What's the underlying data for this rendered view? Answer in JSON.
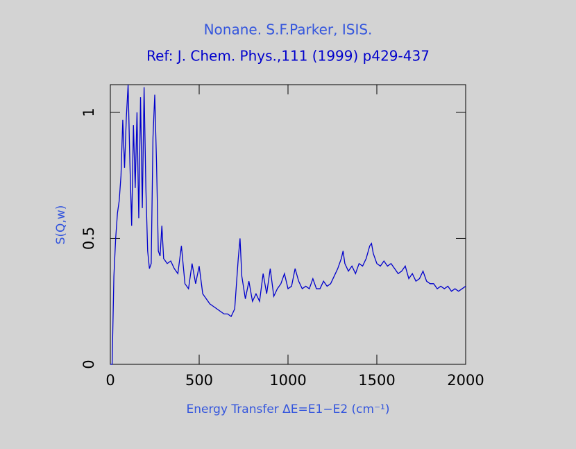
{
  "chart_data": {
    "type": "line",
    "title": "Nonane. S.F.Parker, ISIS.",
    "subtitle": "Ref: J. Chem. Phys.,111 (1999) p429-437",
    "x_label": "Energy Transfer ΔE=E1−E2 (cm⁻¹)",
    "y_label": "S(Q,w)",
    "xlim": [
      0,
      2000
    ],
    "ylim": [
      0,
      1.11
    ],
    "xticks": [
      0,
      500,
      1000,
      1500,
      2000
    ],
    "yticks": [
      0,
      0.5,
      1
    ],
    "series": [
      {
        "color": "#0000cc",
        "x": [
          0,
          10,
          20,
          30,
          40,
          50,
          60,
          70,
          80,
          90,
          100,
          110,
          120,
          130,
          140,
          150,
          160,
          170,
          180,
          190,
          200,
          210,
          220,
          230,
          240,
          250,
          260,
          270,
          280,
          290,
          300,
          320,
          340,
          360,
          380,
          400,
          420,
          440,
          460,
          480,
          500,
          520,
          540,
          560,
          580,
          600,
          620,
          640,
          660,
          680,
          700,
          720,
          730,
          740,
          760,
          780,
          800,
          820,
          840,
          860,
          880,
          900,
          920,
          940,
          960,
          980,
          1000,
          1020,
          1040,
          1060,
          1080,
          1100,
          1120,
          1140,
          1160,
          1180,
          1200,
          1220,
          1240,
          1260,
          1280,
          1300,
          1310,
          1320,
          1340,
          1360,
          1380,
          1400,
          1420,
          1440,
          1460,
          1470,
          1480,
          1500,
          1520,
          1540,
          1560,
          1580,
          1600,
          1620,
          1640,
          1660,
          1680,
          1700,
          1720,
          1740,
          1760,
          1780,
          1800,
          1820,
          1840,
          1860,
          1880,
          1900,
          1920,
          1940,
          1960,
          1980,
          2000
        ],
        "values": [
          0,
          0,
          0.35,
          0.5,
          0.6,
          0.65,
          0.75,
          0.97,
          0.78,
          0.98,
          1.11,
          0.8,
          0.55,
          0.95,
          0.7,
          1.0,
          0.58,
          1.06,
          0.62,
          1.1,
          0.7,
          0.45,
          0.38,
          0.4,
          0.9,
          1.07,
          0.8,
          0.45,
          0.43,
          0.55,
          0.42,
          0.4,
          0.41,
          0.38,
          0.36,
          0.47,
          0.32,
          0.3,
          0.4,
          0.32,
          0.39,
          0.28,
          0.26,
          0.24,
          0.23,
          0.22,
          0.21,
          0.2,
          0.2,
          0.19,
          0.22,
          0.42,
          0.5,
          0.35,
          0.26,
          0.33,
          0.25,
          0.28,
          0.25,
          0.36,
          0.28,
          0.38,
          0.27,
          0.3,
          0.32,
          0.36,
          0.3,
          0.31,
          0.38,
          0.33,
          0.3,
          0.31,
          0.3,
          0.34,
          0.3,
          0.3,
          0.33,
          0.31,
          0.32,
          0.35,
          0.38,
          0.42,
          0.45,
          0.4,
          0.37,
          0.39,
          0.36,
          0.4,
          0.39,
          0.42,
          0.47,
          0.48,
          0.44,
          0.4,
          0.39,
          0.41,
          0.39,
          0.4,
          0.38,
          0.36,
          0.37,
          0.39,
          0.34,
          0.36,
          0.33,
          0.34,
          0.37,
          0.33,
          0.32,
          0.32,
          0.3,
          0.31,
          0.3,
          0.31,
          0.29,
          0.3,
          0.29,
          0.3,
          0.31
        ]
      }
    ]
  }
}
